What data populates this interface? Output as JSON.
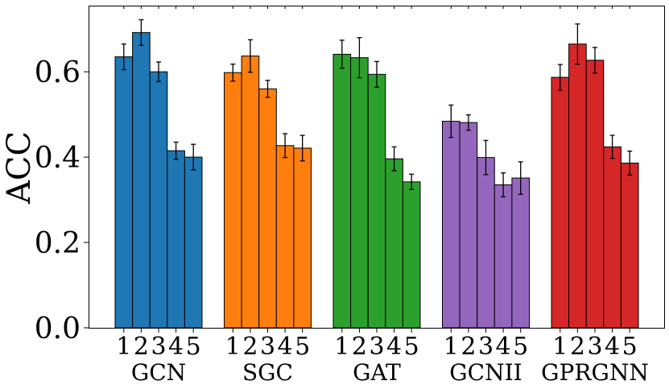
{
  "chart_data": {
    "type": "bar",
    "title": "",
    "xlabel": "",
    "ylabel": "ACC",
    "ylim": [
      0,
      0.755
    ],
    "yticks": [
      0.0,
      0.2,
      0.4,
      0.6
    ],
    "ytick_labels": [
      "0.0",
      "0.2",
      "0.4",
      "0.6"
    ],
    "sub_labels": [
      "1",
      "2",
      "3",
      "4",
      "5"
    ],
    "groups": [
      {
        "name": "GCN",
        "color": "#1f77b4",
        "values": [
          0.635,
          0.692,
          0.6,
          0.415,
          0.4
        ],
        "errors": [
          0.03,
          0.03,
          0.023,
          0.02,
          0.03
        ]
      },
      {
        "name": "SGC",
        "color": "#ff7f0e",
        "values": [
          0.598,
          0.637,
          0.56,
          0.427,
          0.421
        ],
        "errors": [
          0.02,
          0.038,
          0.02,
          0.028,
          0.03
        ]
      },
      {
        "name": "GAT",
        "color": "#2ca02c",
        "values": [
          0.641,
          0.633,
          0.594,
          0.396,
          0.342
        ],
        "errors": [
          0.033,
          0.047,
          0.03,
          0.028,
          0.018
        ]
      },
      {
        "name": "GCNII",
        "color": "#9467bd",
        "values": [
          0.484,
          0.481,
          0.399,
          0.335,
          0.351
        ],
        "errors": [
          0.038,
          0.018,
          0.04,
          0.028,
          0.038
        ]
      },
      {
        "name": "GPRGNN",
        "color": "#d62728",
        "values": [
          0.587,
          0.665,
          0.627,
          0.424,
          0.386
        ],
        "errors": [
          0.03,
          0.047,
          0.03,
          0.027,
          0.028
        ]
      }
    ],
    "grid": false,
    "legend": "none"
  }
}
